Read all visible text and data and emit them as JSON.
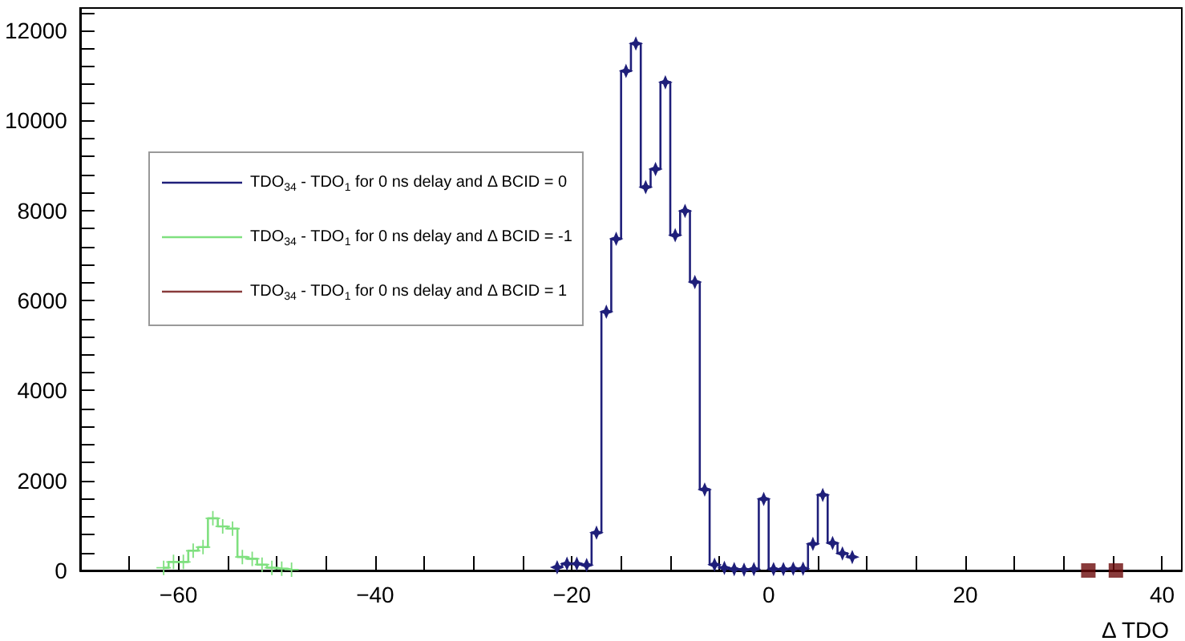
{
  "chart_data": {
    "type": "step",
    "xlabel": "Δ TDO",
    "xlim": [
      -70,
      42
    ],
    "ylim": [
      0,
      12500
    ],
    "xticks": [
      {
        "value": -65,
        "label": null
      },
      {
        "value": -60,
        "label": "−60"
      },
      {
        "value": -55,
        "label": null
      },
      {
        "value": -50,
        "label": null
      },
      {
        "value": -45,
        "label": null
      },
      {
        "value": -40,
        "label": "−40"
      },
      {
        "value": -35,
        "label": null
      },
      {
        "value": -30,
        "label": null
      },
      {
        "value": -25,
        "label": null
      },
      {
        "value": -20,
        "label": "−20"
      },
      {
        "value": -15,
        "label": null
      },
      {
        "value": -10,
        "label": null
      },
      {
        "value": -5,
        "label": null
      },
      0,
      {
        "value": 5,
        "label": null
      },
      {
        "value": 10,
        "label": null
      },
      {
        "value": 15,
        "label": null
      },
      20,
      {
        "value": 25,
        "label": null
      },
      {
        "value": 30,
        "label": null
      },
      {
        "value": 35,
        "label": null
      },
      40
    ],
    "yticks": [
      0,
      {
        "value": 400,
        "label": null
      },
      {
        "value": 800,
        "label": null
      },
      {
        "value": 1200,
        "label": null
      },
      {
        "value": 1600,
        "label": null
      },
      2000,
      {
        "value": 2400,
        "label": null
      },
      {
        "value": 2800,
        "label": null
      },
      {
        "value": 3200,
        "label": null
      },
      {
        "value": 3600,
        "label": null
      },
      4000,
      {
        "value": 4400,
        "label": null
      },
      {
        "value": 4800,
        "label": null
      },
      {
        "value": 5200,
        "label": null
      },
      {
        "value": 5600,
        "label": null
      },
      6000,
      {
        "value": 6400,
        "label": null
      },
      {
        "value": 6800,
        "label": null
      },
      {
        "value": 7200,
        "label": null
      },
      {
        "value": 7600,
        "label": null
      },
      8000,
      {
        "value": 8400,
        "label": null
      },
      {
        "value": 8800,
        "label": null
      },
      {
        "value": 9200,
        "label": null
      },
      {
        "value": 9600,
        "label": null
      },
      10000,
      {
        "value": 10400,
        "label": null
      },
      {
        "value": 10800,
        "label": null
      },
      {
        "value": 11200,
        "label": null
      },
      {
        "value": 11600,
        "label": null
      },
      12000,
      {
        "value": 12400,
        "label": null
      }
    ],
    "grid": false,
    "legend": "top left",
    "series": [
      {
        "name": "TDO$_{34}$ - TDO$_{1}$ for 0 ns delay and Δ BCID = 0",
        "color": "#1f1f7a",
        "marker": "star",
        "x": [
          -21.5,
          -20.5,
          -19.5,
          -18.5,
          -17.5,
          -16.5,
          -15.5,
          -14.5,
          -13.5,
          -12.5,
          -11.5,
          -10.5,
          -9.5,
          -8.5,
          -7.5,
          -6.5,
          -5.5,
          -4.5,
          -3.5,
          -2.5,
          -1.5,
          -0.5,
          0.5,
          1.5,
          2.5,
          3.5,
          4.5,
          5.5,
          6.5,
          7.5,
          8.5
        ],
        "values": [
          70,
          150,
          150,
          120,
          840,
          5750,
          7370,
          11100,
          11710,
          8520,
          8920,
          10850,
          7450,
          7990,
          6410,
          1800,
          130,
          60,
          30,
          20,
          30,
          1590,
          30,
          30,
          40,
          40,
          590,
          1680,
          610,
          380,
          300
        ]
      },
      {
        "name": "TDO$_{34}$ - TDO$_{1}$ for 0 ns delay and Δ BCID = -1",
        "color": "#7fe07f",
        "marker": "cross",
        "x": [
          -61.5,
          -60.5,
          -59.5,
          -58.5,
          -57.5,
          -56.5,
          -55.5,
          -54.5,
          -53.5,
          -52.5,
          -51.5,
          -50.5,
          -49.5,
          -48.5
        ],
        "values": [
          60,
          190,
          190,
          440,
          520,
          1160,
          980,
          930,
          300,
          260,
          130,
          60,
          40,
          20
        ]
      },
      {
        "name": "TDO$_{34}$ - TDO$_{1}$ for 0 ns delay and Δ BCID = 1",
        "color": "#6b0a0a",
        "marker": "square",
        "type": "scatter",
        "x": [
          32.5,
          35.3
        ],
        "values": [
          0,
          0
        ]
      }
    ]
  }
}
